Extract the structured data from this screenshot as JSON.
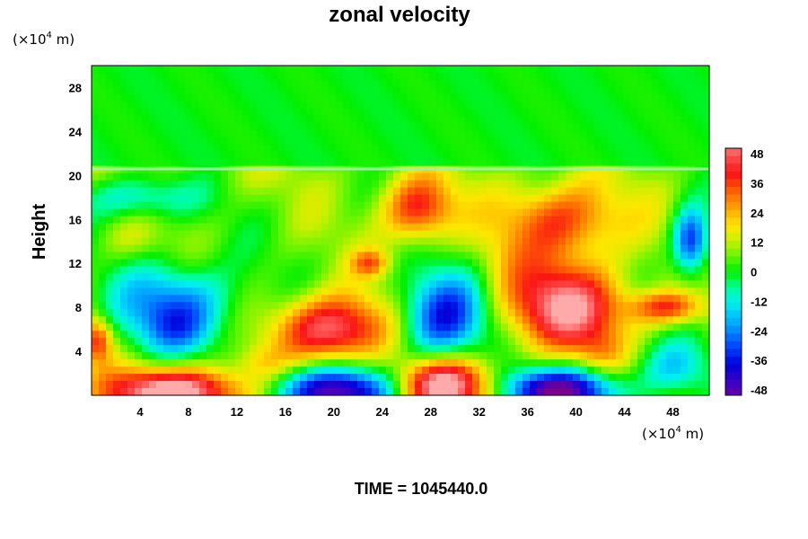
{
  "chart_data": {
    "type": "heatmap",
    "title": "zonal velocity",
    "ylabel": "Height",
    "x_unit": {
      "prefix": "(×10",
      "exp": "4",
      "suffix": " m)"
    },
    "y_unit": {
      "prefix": "(×10",
      "exp": "4",
      "suffix": " m)"
    },
    "xlim": [
      0,
      51
    ],
    "ylim": [
      0,
      30
    ],
    "xticks": [
      4,
      8,
      12,
      16,
      20,
      24,
      28,
      32,
      36,
      40,
      44,
      48
    ],
    "yticks": [
      4,
      8,
      12,
      16,
      20,
      24,
      28
    ],
    "colorbar": {
      "ticks": [
        48,
        36,
        24,
        12,
        0,
        -12,
        -24,
        -36,
        -48
      ],
      "range": [
        -48,
        48
      ]
    },
    "upper_layer": {
      "ymin": 20.6,
      "ymax": 30,
      "value": 0
    },
    "features": [
      {
        "x": 13,
        "y": 20,
        "rx": 8,
        "ry": 2,
        "v": 2
      },
      {
        "x": 7,
        "y": 8,
        "rx": 5,
        "ry": 4,
        "v": -32
      },
      {
        "x": 7,
        "y": 6,
        "rx": 2.5,
        "ry": 2,
        "v": -8
      },
      {
        "x": 7,
        "y": 0.3,
        "rx": 6,
        "ry": 2.2,
        "v": 54
      },
      {
        "x": 20,
        "y": 0.3,
        "rx": 5,
        "ry": 2.2,
        "v": -56
      },
      {
        "x": 20,
        "y": 6,
        "rx": 4.5,
        "ry": 3,
        "v": 45
      },
      {
        "x": 14,
        "y": 3,
        "rx": 2,
        "ry": 1.5,
        "v": 8
      },
      {
        "x": 29,
        "y": 0.8,
        "rx": 4,
        "ry": 2.5,
        "v": 54
      },
      {
        "x": 29,
        "y": 7,
        "rx": 3.5,
        "ry": 4,
        "v": -42
      },
      {
        "x": 38.5,
        "y": 0.4,
        "rx": 5,
        "ry": 2,
        "v": -54
      },
      {
        "x": 39,
        "y": 8,
        "rx": 5,
        "ry": 4,
        "v": 44
      },
      {
        "x": 27,
        "y": 17,
        "rx": 3,
        "ry": 3,
        "v": 34
      },
      {
        "x": 39,
        "y": 16,
        "rx": 5,
        "ry": 3.5,
        "v": 30
      },
      {
        "x": 47.5,
        "y": 8,
        "rx": 3,
        "ry": 1.5,
        "v": 30
      },
      {
        "x": 49.5,
        "y": 14,
        "rx": 1.5,
        "ry": 3,
        "v": -40
      },
      {
        "x": 4,
        "y": 18,
        "rx": 4.5,
        "ry": 2,
        "v": -20
      },
      {
        "x": 48,
        "y": 2.5,
        "rx": 3,
        "ry": 2.5,
        "v": -18
      },
      {
        "x": 0.5,
        "y": 5,
        "rx": 1.2,
        "ry": 2,
        "v": 30
      },
      {
        "x": 23,
        "y": 12,
        "rx": 1.5,
        "ry": 1.2,
        "v": 22
      },
      {
        "x": 34,
        "y": 12,
        "rx": 2.5,
        "ry": 3,
        "v": 6
      },
      {
        "x": 42,
        "y": 4,
        "rx": 2,
        "ry": 2,
        "v": 10
      },
      {
        "x": 3,
        "y": 14,
        "rx": 2.5,
        "ry": 2,
        "v": 6
      }
    ]
  },
  "footer": {
    "time_label": "TIME = 1045440.0"
  }
}
